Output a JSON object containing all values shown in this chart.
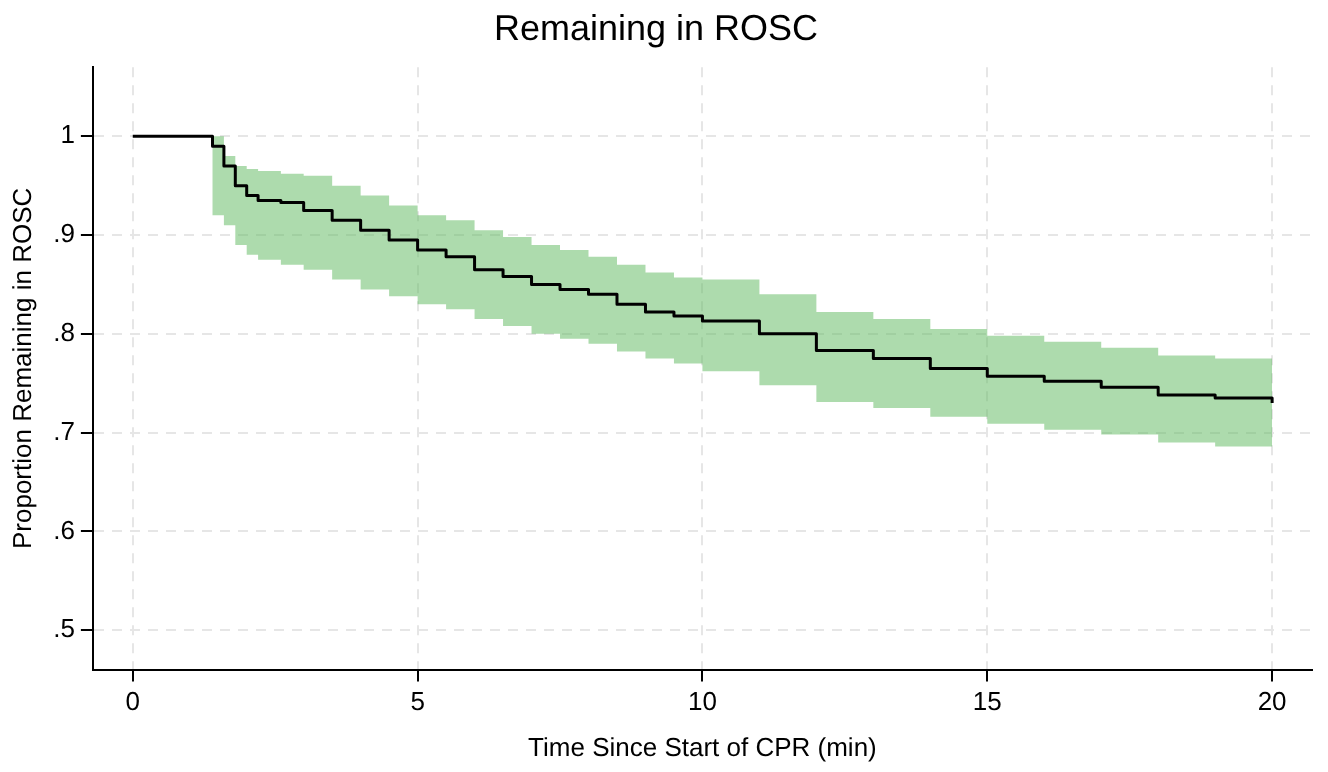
{
  "chart_data": {
    "type": "step",
    "title": "Remaining in ROSC",
    "xlabel": "Time Since Start of CPR (min)",
    "ylabel": "Proportion Remaining in ROSC",
    "x": [
      0,
      1.4,
      1.6,
      1.8,
      2.0,
      2.2,
      2.6,
      3.0,
      3.5,
      4.0,
      4.5,
      5.0,
      5.5,
      6.0,
      6.5,
      7.0,
      7.5,
      8.0,
      8.5,
      9.0,
      9.5,
      10.0,
      11.0,
      12.0,
      13.0,
      14.0,
      15.0,
      16.0,
      17.0,
      18.0,
      19.0,
      20.0
    ],
    "series": [
      {
        "color": "#000000",
        "values": [
          1,
          0.99,
          0.97,
          0.95,
          0.94,
          0.935,
          0.933,
          0.925,
          0.915,
          0.905,
          0.895,
          0.885,
          0.878,
          0.865,
          0.858,
          0.85,
          0.845,
          0.84,
          0.83,
          0.822,
          0.818,
          0.813,
          0.8,
          0.783,
          0.775,
          0.765,
          0.757,
          0.752,
          0.746,
          0.738,
          0.735,
          0.73
        ],
        "lower": [
          1,
          0.92,
          0.91,
          0.89,
          0.88,
          0.875,
          0.87,
          0.865,
          0.855,
          0.845,
          0.838,
          0.83,
          0.825,
          0.815,
          0.808,
          0.8,
          0.795,
          0.79,
          0.782,
          0.775,
          0.77,
          0.762,
          0.748,
          0.731,
          0.725,
          0.716,
          0.709,
          0.703,
          0.698,
          0.69,
          0.686,
          0.682
        ],
        "upper": [
          1,
          1,
          0.98,
          0.97,
          0.967,
          0.965,
          0.962,
          0.96,
          0.95,
          0.94,
          0.93,
          0.92,
          0.915,
          0.905,
          0.898,
          0.89,
          0.885,
          0.878,
          0.87,
          0.862,
          0.857,
          0.855,
          0.84,
          0.822,
          0.815,
          0.805,
          0.798,
          0.792,
          0.786,
          0.778,
          0.775,
          0.772
        ]
      }
    ],
    "xlim": [
      -0.7,
      20.7
    ],
    "ylim": [
      0.46,
      1.07
    ],
    "xticks": [
      0,
      5,
      10,
      15,
      20
    ],
    "yticks": [
      {
        "value": 0.5,
        "label": ".5"
      },
      {
        "value": 0.6,
        "label": ".6"
      },
      {
        "value": 0.7,
        "label": ".7"
      },
      {
        "value": 0.8,
        "label": ".8"
      },
      {
        "value": 0.9,
        "label": ".9"
      },
      1
    ],
    "grid": true,
    "legend": false,
    "marker": "none",
    "line_style": "solid"
  }
}
